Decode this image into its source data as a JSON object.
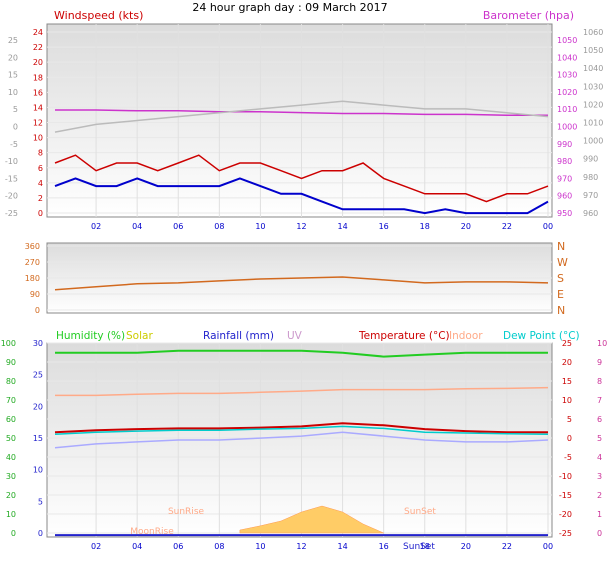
{
  "title": "24 hour graph day : 09 March 2017",
  "colors": {
    "wind_speed": "#cc0000",
    "wind_avg": "#0000cc",
    "barometer": "#cc33cc",
    "temperature_bar": "#bbbbbb",
    "wind_dir": "#d2691e",
    "humidity": "#22cc22",
    "solar": "#cccc00",
    "rainfall": "#2222cc",
    "uv": "#cc99cc",
    "temperature": "#cc0000",
    "indoor": "#ffaa88",
    "dew_point": "#00cccc",
    "apparent": "#aaaaff",
    "solar_fill": "#ffcc66"
  },
  "chart_data": [
    {
      "type": "line",
      "panel": "wind_barometer",
      "labels": {
        "left": "Windspeed (kts)",
        "right": "Barometer (hpa)"
      },
      "x_ticks": [
        "02",
        "04",
        "06",
        "08",
        "10",
        "12",
        "14",
        "16",
        "18",
        "20",
        "22",
        "00"
      ],
      "left_ticks_outer": [
        "25",
        "20",
        "15",
        "10",
        "5",
        "0",
        "-5",
        "-10",
        "-15",
        "-20",
        "-25"
      ],
      "left_ticks": [
        "24",
        "22",
        "20",
        "18",
        "16",
        "14",
        "12",
        "10",
        "8",
        "6",
        "4",
        "2",
        "0"
      ],
      "right_ticks": [
        "1050",
        "1040",
        "1030",
        "1020",
        "1010",
        "1000",
        "990",
        "980",
        "970",
        "960",
        "950"
      ],
      "right_ticks_outer": [
        "1060",
        "1050",
        "1040",
        "1030",
        "1020",
        "1010",
        "1000",
        "990",
        "980",
        "970",
        "960"
      ],
      "ylim_left": [
        0,
        25
      ],
      "ylim_right": [
        950,
        1060
      ],
      "series": [
        {
          "key": "barometer",
          "x_hours": [
            0,
            2,
            4,
            6,
            8,
            10,
            12,
            14,
            16,
            18,
            20,
            22,
            24
          ],
          "values": [
            1011,
            1011,
            1010.5,
            1010.5,
            1010,
            1010,
            1009.5,
            1009,
            1009,
            1008.5,
            1008.5,
            1008,
            1008
          ]
        },
        {
          "key": "temperature_bar",
          "x_hours": [
            0,
            2,
            4,
            6,
            8,
            10,
            12,
            14,
            16,
            18,
            20,
            22,
            24
          ],
          "values": [
            11,
            12,
            12.5,
            13,
            13.5,
            14,
            14.5,
            15,
            14.5,
            14,
            14,
            13.5,
            13
          ]
        },
        {
          "key": "wind_speed",
          "x_hours": [
            0,
            1,
            2,
            3,
            4,
            5,
            6,
            7,
            8,
            9,
            10,
            11,
            12,
            13,
            14,
            15,
            16,
            17,
            18,
            19,
            20,
            21,
            22,
            23,
            24
          ],
          "values": [
            7,
            8,
            6,
            7,
            7,
            6,
            7,
            8,
            6,
            7,
            7,
            6,
            5,
            6,
            6,
            7,
            5,
            4,
            3,
            3,
            3,
            2,
            3,
            3,
            4
          ]
        },
        {
          "key": "wind_avg",
          "x_hours": [
            0,
            1,
            2,
            3,
            4,
            5,
            6,
            7,
            8,
            9,
            10,
            11,
            12,
            13,
            14,
            15,
            16,
            17,
            18,
            19,
            20,
            21,
            22,
            23,
            24
          ],
          "values": [
            4,
            5,
            4,
            4,
            5,
            4,
            4,
            4,
            4,
            5,
            4,
            3,
            3,
            2,
            1,
            1,
            1,
            1,
            0.5,
            1,
            0.5,
            0.5,
            0.5,
            0.5,
            2
          ]
        }
      ]
    },
    {
      "type": "line",
      "panel": "wind_direction",
      "left_ticks": [
        "360",
        "270",
        "180",
        "90",
        "0"
      ],
      "right_ticks": [
        "N",
        "W",
        "S",
        "E",
        "N"
      ],
      "ylim": [
        0,
        360
      ],
      "series": [
        {
          "key": "wind_dir",
          "x_hours": [
            0,
            2,
            4,
            6,
            8,
            10,
            12,
            14,
            16,
            18,
            20,
            22,
            24
          ],
          "values": [
            120,
            135,
            150,
            155,
            165,
            175,
            180,
            185,
            170,
            155,
            160,
            160,
            155
          ]
        }
      ]
    },
    {
      "type": "line",
      "panel": "temp_hum_solar",
      "legend": [
        {
          "key": "humidity",
          "label": "Humidity (%)"
        },
        {
          "key": "solar",
          "label": "Solar"
        },
        {
          "key": "rainfall",
          "label": "Rainfall (mm)"
        },
        {
          "key": "uv",
          "label": "UV"
        },
        {
          "key": "temperature",
          "label": "Temperature (°C)"
        },
        {
          "key": "indoor",
          "label": "Indoor"
        },
        {
          "key": "dew_point",
          "label": "Dew Point (°C)"
        }
      ],
      "x_ticks": [
        "02",
        "04",
        "06",
        "08",
        "10",
        "12",
        "14",
        "16",
        "18",
        "20",
        "22",
        "00"
      ],
      "ticks_hum": [
        "100",
        "90",
        "80",
        "70",
        "60",
        "50",
        "40",
        "30",
        "20",
        "10",
        "0"
      ],
      "ticks_rain": [
        "30",
        "25",
        "20",
        "15",
        "10",
        "5",
        "0"
      ],
      "ticks_temp": [
        "25",
        "20",
        "15",
        "10",
        "5",
        "0",
        "-5",
        "-10",
        "-15",
        "-20",
        "-25"
      ],
      "ticks_uv": [
        "10",
        "9",
        "8",
        "7",
        "6",
        "5",
        "4",
        "3",
        "2",
        "1",
        "0"
      ],
      "annotations": [
        "SunRise",
        "SunSet",
        "MoonRise",
        "SunSet"
      ],
      "ylim_temp": [
        -25,
        25
      ],
      "series": [
        {
          "key": "humidity",
          "x_hours": [
            0,
            2,
            4,
            6,
            8,
            10,
            12,
            14,
            16,
            18,
            20,
            22,
            24
          ],
          "values": [
            95,
            95,
            95,
            96,
            96,
            96,
            96,
            95,
            93,
            94,
            95,
            95,
            95
          ]
        },
        {
          "key": "indoor",
          "x_hours": [
            0,
            2,
            4,
            6,
            8,
            10,
            12,
            14,
            16,
            18,
            20,
            22,
            24
          ],
          "values": [
            11.5,
            11.5,
            11.8,
            12,
            12,
            12.3,
            12.6,
            13,
            13,
            13,
            13.2,
            13.3,
            13.5
          ]
        },
        {
          "key": "temperature",
          "x_hours": [
            0,
            2,
            4,
            6,
            8,
            10,
            12,
            14,
            16,
            18,
            20,
            22,
            24
          ],
          "values": [
            2,
            2.5,
            2.8,
            3,
            3,
            3.2,
            3.5,
            4.3,
            3.8,
            2.8,
            2.3,
            2,
            2
          ]
        },
        {
          "key": "dew_point",
          "x_hours": [
            0,
            2,
            4,
            6,
            8,
            10,
            12,
            14,
            16,
            18,
            20,
            22,
            24
          ],
          "values": [
            1.5,
            2,
            2.3,
            2.5,
            2.5,
            2.8,
            3,
            3.5,
            3,
            2,
            1.8,
            1.6,
            1.5
          ]
        },
        {
          "key": "apparent",
          "x_hours": [
            0,
            2,
            4,
            6,
            8,
            10,
            12,
            14,
            16,
            18,
            20,
            22,
            24
          ],
          "values": [
            -2,
            -1,
            -0.5,
            0,
            0,
            0.5,
            1,
            2,
            1,
            0,
            -0.5,
            -0.5,
            0
          ]
        },
        {
          "key": "rainfall",
          "x_hours": [
            0,
            24
          ],
          "values": [
            0.3,
            0.3
          ]
        },
        {
          "key": "solar_fill",
          "x_hours": [
            9,
            10,
            11,
            12,
            13,
            14,
            15,
            16
          ],
          "values": [
            0.5,
            1.2,
            2,
            3.5,
            4.5,
            3.5,
            1.5,
            0
          ]
        }
      ]
    }
  ]
}
